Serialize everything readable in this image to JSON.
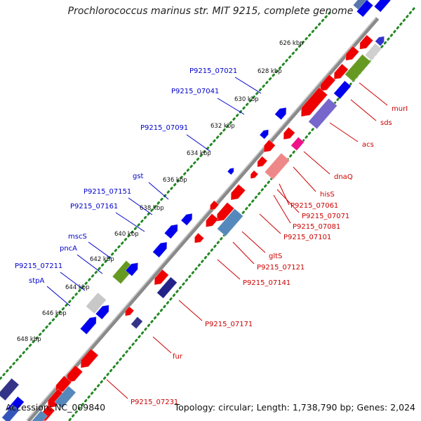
{
  "title": "Prochlorococcus marinus str. MIT 9215, complete genome",
  "footer": {
    "accession": "Accession: NC_009840",
    "stats": "Topology: circular; Length: 1,738,790 bp; Genes: 2,024"
  },
  "colors": {
    "forward_label": "#0000cc",
    "reverse_label": "#cc0000",
    "backbone": "#8a8a8a",
    "scale_dots": "#228822"
  },
  "scale_ticks": [
    "626 kbp",
    "628 kbp",
    "630 kbp",
    "632 kbp",
    "634 kbp",
    "636 kbp",
    "638 kbp",
    "640 kbp",
    "642 kbp",
    "644 kbp",
    "646 kbp",
    "648 kbp"
  ],
  "forward_labels": [
    "P9215_07021",
    "P9215_07041",
    "P9215_07091",
    "gst",
    "P9215_07151",
    "P9215_07161",
    "mscS",
    "pncA",
    "P9215_07211",
    "stpA"
  ],
  "reverse_labels": [
    "murI",
    "sds",
    "acs",
    "dnaQ",
    "hisS",
    "P9215_07061",
    "P9215_07071",
    "P9215_07081",
    "P9215_07101",
    "gltS",
    "P9215_07121",
    "P9215_07141",
    "P9215_07171",
    "fur",
    "P9215_07231"
  ]
}
